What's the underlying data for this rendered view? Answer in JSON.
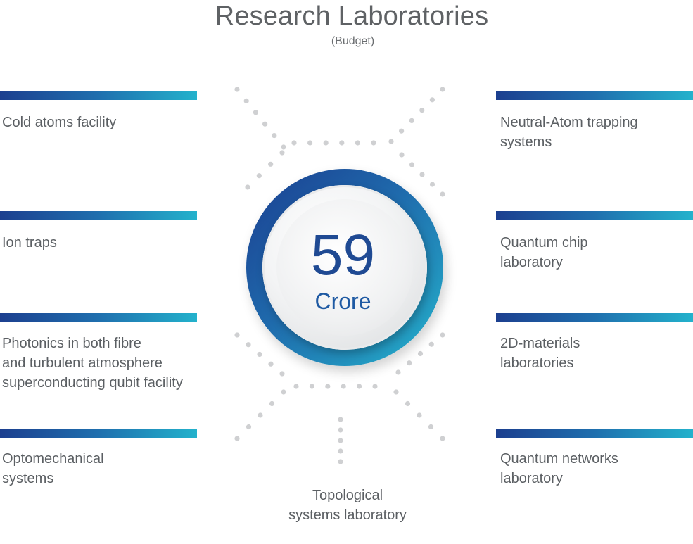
{
  "title": "Research Laboratories",
  "subtitle": "(Budget)",
  "center": {
    "value": "59",
    "unit": "Crore"
  },
  "left_items": [
    {
      "lines": [
        "Cold atoms facility"
      ]
    },
    {
      "lines": [
        "Ion traps"
      ]
    },
    {
      "lines": [
        "Photonics in both fibre",
        "and turbulent atmosphere",
        "superconducting qubit facility"
      ]
    },
    {
      "lines": [
        "Optomechanical",
        "systems"
      ]
    }
  ],
  "right_items": [
    {
      "lines": [
        "Neutral-Atom trapping",
        "systems"
      ]
    },
    {
      "lines": [
        "Quantum chip",
        "laboratory"
      ]
    },
    {
      "lines": [
        "2D-materials",
        "laboratories"
      ]
    },
    {
      "lines": [
        "Quantum networks",
        "laboratory"
      ]
    }
  ],
  "bottom_item": {
    "lines": [
      "Topological",
      "systems laboratory"
    ]
  },
  "colors": {
    "gradient_start": "#1c3f8f",
    "gradient_end": "#23b2cc",
    "dots": "#cfd0d2",
    "text": "#5b5f63"
  }
}
